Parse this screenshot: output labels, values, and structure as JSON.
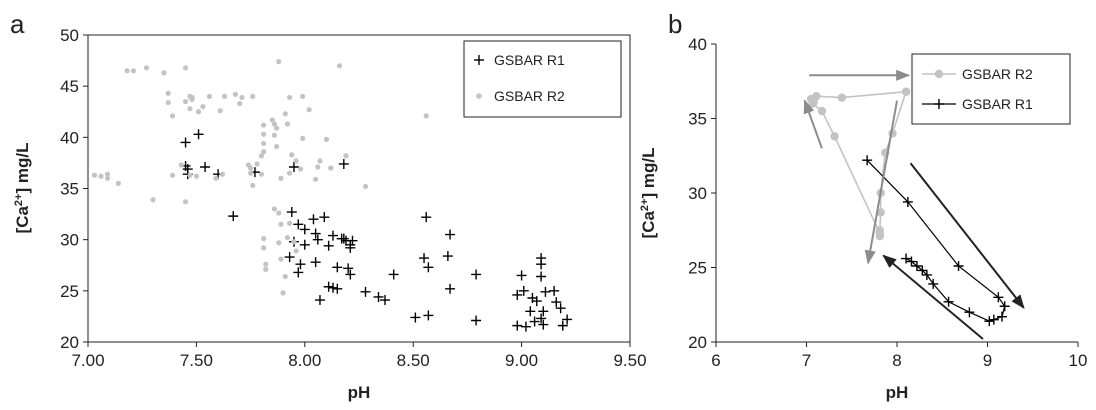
{
  "chart_data": [
    {
      "panel_label": "a",
      "type": "scatter",
      "xlabel": "pH",
      "ylabel_main": "[Ca",
      "ylabel_sup": "2+",
      "ylabel_tail": "] mg/L",
      "xlim": [
        7.0,
        9.5
      ],
      "ylim": [
        20,
        50
      ],
      "xticks": [
        "7.00",
        "7.50",
        "8.00",
        "8.50",
        "9.00",
        "9.50"
      ],
      "yticks": [
        "20",
        "25",
        "30",
        "35",
        "40",
        "45",
        "50"
      ],
      "legend_position": "top-right",
      "series": [
        {
          "name": "GSBAR R1",
          "marker": "plus",
          "color": "#000000",
          "points": [
            [
              7.45,
              39.5
            ],
            [
              7.51,
              40.3
            ],
            [
              7.45,
              37.2
            ],
            [
              7.46,
              36.9
            ],
            [
              7.54,
              37.1
            ],
            [
              7.46,
              36.4
            ],
            [
              7.6,
              36.4
            ],
            [
              7.77,
              36.6
            ],
            [
              7.95,
              37.1
            ],
            [
              8.18,
              37.4
            ],
            [
              7.67,
              32.3
            ],
            [
              7.94,
              32.7
            ],
            [
              7.97,
              31.5
            ],
            [
              8.0,
              31.0
            ],
            [
              8.04,
              32.0
            ],
            [
              8.09,
              32.2
            ],
            [
              8.05,
              30.6
            ],
            [
              8.06,
              30.0
            ],
            [
              7.95,
              29.8
            ],
            [
              8.0,
              29.5
            ],
            [
              8.11,
              29.4
            ],
            [
              8.13,
              30.4
            ],
            [
              8.17,
              30.1
            ],
            [
              8.18,
              30.1
            ],
            [
              8.19,
              29.9
            ],
            [
              8.21,
              29.5
            ],
            [
              8.22,
              29.9
            ],
            [
              8.21,
              29.2
            ],
            [
              7.93,
              28.3
            ],
            [
              7.98,
              27.6
            ],
            [
              7.97,
              26.8
            ],
            [
              8.05,
              27.8
            ],
            [
              8.15,
              27.3
            ],
            [
              8.2,
              27.2
            ],
            [
              8.21,
              26.6
            ],
            [
              8.11,
              25.4
            ],
            [
              8.13,
              25.3
            ],
            [
              8.15,
              25.2
            ],
            [
              8.07,
              24.1
            ],
            [
              8.28,
              24.9
            ],
            [
              8.34,
              24.4
            ],
            [
              8.37,
              24.1
            ],
            [
              8.41,
              26.6
            ],
            [
              8.51,
              22.4
            ],
            [
              8.56,
              32.2
            ],
            [
              8.55,
              28.2
            ],
            [
              8.57,
              27.3
            ],
            [
              8.57,
              22.6
            ],
            [
              8.67,
              30.5
            ],
            [
              8.66,
              28.4
            ],
            [
              8.67,
              25.2
            ],
            [
              8.79,
              26.6
            ],
            [
              8.79,
              22.1
            ],
            [
              8.98,
              24.6
            ],
            [
              8.98,
              21.6
            ],
            [
              9.0,
              26.5
            ],
            [
              9.01,
              25.0
            ],
            [
              9.02,
              21.5
            ],
            [
              9.04,
              23.0
            ],
            [
              9.05,
              24.3
            ],
            [
              9.06,
              22.0
            ],
            [
              9.07,
              24.0
            ],
            [
              9.09,
              27.6
            ],
            [
              9.09,
              28.2
            ],
            [
              9.09,
              26.4
            ],
            [
              9.09,
              22.3
            ],
            [
              9.1,
              21.7
            ],
            [
              9.1,
              23.0
            ],
            [
              9.11,
              24.9
            ],
            [
              9.15,
              25.0
            ],
            [
              9.16,
              23.9
            ],
            [
              9.18,
              23.3
            ],
            [
              9.19,
              21.6
            ],
            [
              9.21,
              22.2
            ]
          ]
        },
        {
          "name": "GSBAR R2",
          "marker": "dot",
          "color": "#c3c3c3",
          "points": [
            [
              7.03,
              36.3
            ],
            [
              7.06,
              36.2
            ],
            [
              7.09,
              36.4
            ],
            [
              7.09,
              36.0
            ],
            [
              7.14,
              35.5
            ],
            [
              7.18,
              46.5
            ],
            [
              7.21,
              46.5
            ],
            [
              7.27,
              46.8
            ],
            [
              7.3,
              33.9
            ],
            [
              7.35,
              46.3
            ],
            [
              7.37,
              44.3
            ],
            [
              7.37,
              43.4
            ],
            [
              7.39,
              42.1
            ],
            [
              7.39,
              36.3
            ],
            [
              7.43,
              37.3
            ],
            [
              7.45,
              46.8
            ],
            [
              7.45,
              43.5
            ],
            [
              7.47,
              44.0
            ],
            [
              7.47,
              42.8
            ],
            [
              7.47,
              36.3
            ],
            [
              7.45,
              33.7
            ],
            [
              7.48,
              43.9
            ],
            [
              7.48,
              43.7
            ],
            [
              7.5,
              36.2
            ],
            [
              7.51,
              42.5
            ],
            [
              7.53,
              43.0
            ],
            [
              7.56,
              44.0
            ],
            [
              7.61,
              42.6
            ],
            [
              7.63,
              44.0
            ],
            [
              7.59,
              36.0
            ],
            [
              7.62,
              36.4
            ],
            [
              7.68,
              44.2
            ],
            [
              7.71,
              43.9
            ],
            [
              7.7,
              43.3
            ],
            [
              7.76,
              44.0
            ],
            [
              7.74,
              37.3
            ],
            [
              7.75,
              37.0
            ],
            [
              7.75,
              36.5
            ],
            [
              7.76,
              35.3
            ],
            [
              7.78,
              37.4
            ],
            [
              7.8,
              36.4
            ],
            [
              7.81,
              41.2
            ],
            [
              7.81,
              40.3
            ],
            [
              7.81,
              39.4
            ],
            [
              7.81,
              38.6
            ],
            [
              7.8,
              38.2
            ],
            [
              7.85,
              41.7
            ],
            [
              7.86,
              41.3
            ],
            [
              7.87,
              40.9
            ],
            [
              7.86,
              40.2
            ],
            [
              7.87,
              39.1
            ],
            [
              7.88,
              47.4
            ],
            [
              7.89,
              36.0
            ],
            [
              7.91,
              42.3
            ],
            [
              7.92,
              41.3
            ],
            [
              7.93,
              43.9
            ],
            [
              7.94,
              38.3
            ],
            [
              7.96,
              37.7
            ],
            [
              7.99,
              44.0
            ],
            [
              7.99,
              39.9
            ],
            [
              7.93,
              36.5
            ],
            [
              7.98,
              36.9
            ],
            [
              7.81,
              30.1
            ],
            [
              7.81,
              29.2
            ],
            [
              7.82,
              27.6
            ],
            [
              7.82,
              27.1
            ],
            [
              7.86,
              33.0
            ],
            [
              7.88,
              32.6
            ],
            [
              7.89,
              31.5
            ],
            [
              7.88,
              29.7
            ],
            [
              7.89,
              28.1
            ],
            [
              7.9,
              24.8
            ],
            [
              7.93,
              31.6
            ],
            [
              7.95,
              29.8
            ],
            [
              7.96,
              28.9
            ],
            [
              7.91,
              26.4
            ],
            [
              7.92,
              30.2
            ],
            [
              8.05,
              35.9
            ],
            [
              8.1,
              39.8
            ],
            [
              8.16,
              47.0
            ],
            [
              8.12,
              37.0
            ],
            [
              8.19,
              38.2
            ],
            [
              8.28,
              35.2
            ],
            [
              8.56,
              42.1
            ],
            [
              8.07,
              37.7
            ],
            [
              8.02,
              42.7
            ],
            [
              8.06,
              37.1
            ],
            [
              8.12,
              37.0
            ]
          ]
        }
      ]
    },
    {
      "panel_label": "b",
      "type": "line",
      "xlabel": "pH",
      "ylabel_main": "[Ca",
      "ylabel_sup": "2+",
      "ylabel_tail": "] mg/L",
      "xlim": [
        6,
        10
      ],
      "ylim": [
        20,
        40
      ],
      "xticks": [
        "6",
        "7",
        "8",
        "9",
        "10"
      ],
      "yticks": [
        "20",
        "25",
        "30",
        "35",
        "40"
      ],
      "legend_position": "top-right",
      "series": [
        {
          "name": "GSBAR R2",
          "marker": "dot",
          "color": "#c3c3c3",
          "points": [
            [
              8.1,
              36.8
            ],
            [
              7.95,
              34.0
            ],
            [
              7.87,
              32.7
            ],
            [
              7.82,
              30.0
            ],
            [
              7.82,
              28.7
            ],
            [
              7.81,
              27.5
            ],
            [
              7.81,
              27.1
            ],
            [
              7.81,
              27.3
            ],
            [
              7.31,
              33.8
            ],
            [
              7.17,
              35.5
            ],
            [
              7.07,
              36.0
            ],
            [
              7.05,
              36.3
            ],
            [
              7.08,
              36.1
            ],
            [
              7.11,
              36.5
            ],
            [
              7.39,
              36.4
            ],
            [
              8.1,
              36.8
            ]
          ]
        },
        {
          "name": "GSBAR R1",
          "marker": "plus",
          "color": "#000000",
          "points": [
            [
              7.67,
              32.2
            ],
            [
              8.12,
              29.4
            ],
            [
              8.68,
              25.1
            ],
            [
              9.12,
              23.0
            ],
            [
              9.19,
              22.4
            ],
            [
              9.16,
              21.7
            ],
            [
              9.07,
              21.5
            ],
            [
              9.02,
              21.4
            ],
            [
              8.8,
              22.0
            ],
            [
              8.57,
              22.7
            ],
            [
              8.4,
              23.9
            ],
            [
              8.33,
              24.5
            ],
            [
              8.28,
              24.8
            ],
            [
              8.22,
              25.1
            ],
            [
              8.16,
              25.4
            ],
            [
              8.1,
              25.6
            ]
          ]
        }
      ],
      "annotation_arrows": [
        {
          "color": "#8c8c8c",
          "from": [
            7.03,
            37.9
          ],
          "to": [
            8.13,
            37.9
          ]
        },
        {
          "color": "#8c8c8c",
          "from": [
            7.17,
            33.0
          ],
          "to": [
            6.98,
            36.2
          ]
        },
        {
          "color": "#8c8c8c",
          "from": [
            8.0,
            36.2
          ],
          "to": [
            7.68,
            25.3
          ]
        },
        {
          "color": "#222222",
          "from": [
            8.15,
            32.0
          ],
          "to": [
            9.4,
            22.3
          ]
        },
        {
          "color": "#222222",
          "from": [
            8.95,
            20.2
          ],
          "to": [
            7.85,
            25.8
          ]
        }
      ]
    }
  ]
}
